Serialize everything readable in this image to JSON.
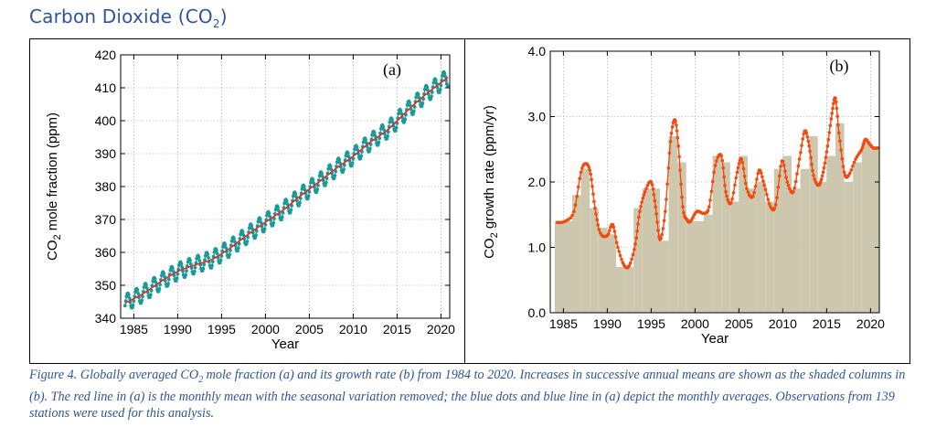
{
  "header": {
    "title_main": "Carbon Dioxide (CO",
    "title_sub": "2",
    "title_end": ")"
  },
  "caption": {
    "part1": "Figure 4. Globally averaged CO",
    "sub": "2",
    "part2": " mole fraction (a) and its growth rate (b) from 1984 to 2020. Increases in successive annual means are shown as the shaded columns in (b). The red line in (a) is the monthly mean with the seasonal variation removed; the blue dots and blue line in (a) depict the monthly averages. Observations from 139 stations were used for this analysis."
  },
  "colors": {
    "red_line": "#e32626",
    "teal_dots": "#1a9a96",
    "bar_fill": "#cdc8ad",
    "orange_line": "#f24b0f",
    "grid": "#9a9a9a"
  },
  "chart_data": [
    {
      "type": "line",
      "panel_label": "(a)",
      "xlabel": "Year",
      "ylabel_pre": "CO",
      "ylabel_sub": "2",
      "ylabel_post": " mole fraction (ppm)",
      "xlim": [
        1983.5,
        2021
      ],
      "ylim": [
        340,
        420
      ],
      "xticks": [
        1985,
        1990,
        1995,
        2000,
        2005,
        2010,
        2015,
        2020
      ],
      "yticks": [
        340,
        350,
        360,
        370,
        380,
        390,
        400,
        410,
        420
      ],
      "grid": true,
      "series": [
        {
          "style": "deseasonalized trend line",
          "x": [
            1984,
            1986,
            1988,
            1990,
            1992,
            1994,
            1996,
            1998,
            2000,
            2002,
            2004,
            2006,
            2008,
            2010,
            2012,
            2014,
            2016,
            2018,
            2020.8
          ],
          "y": [
            344.6,
            347.4,
            351.0,
            354.2,
            356.2,
            358.0,
            361.4,
            365.4,
            369.2,
            372.8,
            377.2,
            381.2,
            385.4,
            389.2,
            393.6,
            397.4,
            402.6,
            407.4,
            413.2
          ]
        },
        {
          "style": "monthly averages (dots and line)",
          "seasonal_amplitude_ppm": 2.6,
          "start_year": 1984,
          "end_year": 2020.8
        }
      ]
    },
    {
      "type": "bar",
      "panel_label": "(b)",
      "xlabel": "Year",
      "ylabel_pre": "CO",
      "ylabel_sub": "2",
      "ylabel_post": " growth rate (ppm/yr)",
      "xlim": [
        1983.5,
        2021
      ],
      "ylim": [
        0,
        4
      ],
      "xticks": [
        1985,
        1990,
        1995,
        2000,
        2005,
        2010,
        2015,
        2020
      ],
      "yticks": [
        "0.0",
        "1.0",
        "2.0",
        "3.0",
        "4.0"
      ],
      "grid": true,
      "annual_increases": {
        "years": [
          1984,
          1985,
          1986,
          1987,
          1988,
          1989,
          1990,
          1991,
          1992,
          1993,
          1994,
          1995,
          1996,
          1997,
          1998,
          1999,
          2000,
          2001,
          2002,
          2003,
          2004,
          2005,
          2006,
          2007,
          2008,
          2009,
          2010,
          2011,
          2012,
          2013,
          2014,
          2015,
          2016,
          2017,
          2018,
          2019,
          2020
        ],
        "values": [
          1.4,
          1.4,
          1.8,
          2.2,
          1.6,
          1.3,
          1.2,
          0.7,
          0.7,
          1.6,
          1.9,
          1.9,
          1.1,
          2.7,
          2.3,
          1.4,
          1.4,
          1.5,
          2.4,
          2.3,
          1.7,
          2.4,
          1.9,
          2.0,
          1.7,
          2.2,
          2.4,
          1.9,
          2.2,
          2.7,
          2.0,
          2.4,
          2.9,
          2.0,
          2.3,
          2.6,
          2.5
        ]
      },
      "growth_rate_line": {
        "x": [
          1984.3,
          1985.2,
          1986.2,
          1987.0,
          1987.6,
          1988.1,
          1988.6,
          1989.2,
          1990.0,
          1990.6,
          1991.2,
          1991.9,
          1992.5,
          1993.2,
          1993.7,
          1994.3,
          1995.0,
          1995.5,
          1996.0,
          1996.6,
          1997.2,
          1997.7,
          1998.1,
          1998.6,
          1999.1,
          1999.5,
          2000.2,
          2001.0,
          2001.6,
          2002.3,
          2003.0,
          2003.5,
          2004.1,
          2004.8,
          2005.3,
          2005.9,
          2006.6,
          2007.3,
          2007.9,
          2008.6,
          2009.2,
          2009.9,
          2010.5,
          2011.2,
          2011.9,
          2012.5,
          2013.0,
          2013.5,
          2014.1,
          2014.6,
          2015.1,
          2015.6,
          2016.0,
          2016.4,
          2017.0,
          2017.5,
          2018.3,
          2019.0,
          2019.4,
          2019.9,
          2020.3,
          2020.8
        ],
        "y": [
          1.38,
          1.4,
          1.55,
          2.15,
          2.28,
          2.12,
          1.6,
          1.22,
          1.18,
          1.35,
          1.0,
          0.73,
          0.72,
          1.05,
          1.55,
          1.85,
          2.0,
          1.62,
          1.12,
          1.55,
          2.62,
          2.95,
          2.55,
          1.62,
          1.42,
          1.4,
          1.55,
          1.52,
          1.62,
          2.25,
          2.4,
          1.85,
          1.68,
          2.15,
          2.35,
          1.9,
          1.78,
          2.18,
          1.95,
          1.62,
          1.65,
          2.32,
          2.0,
          1.85,
          2.35,
          2.78,
          2.55,
          2.1,
          1.95,
          2.15,
          2.55,
          3.05,
          3.28,
          2.75,
          2.15,
          2.1,
          2.35,
          2.5,
          2.65,
          2.58,
          2.52,
          2.52
        ]
      }
    }
  ]
}
